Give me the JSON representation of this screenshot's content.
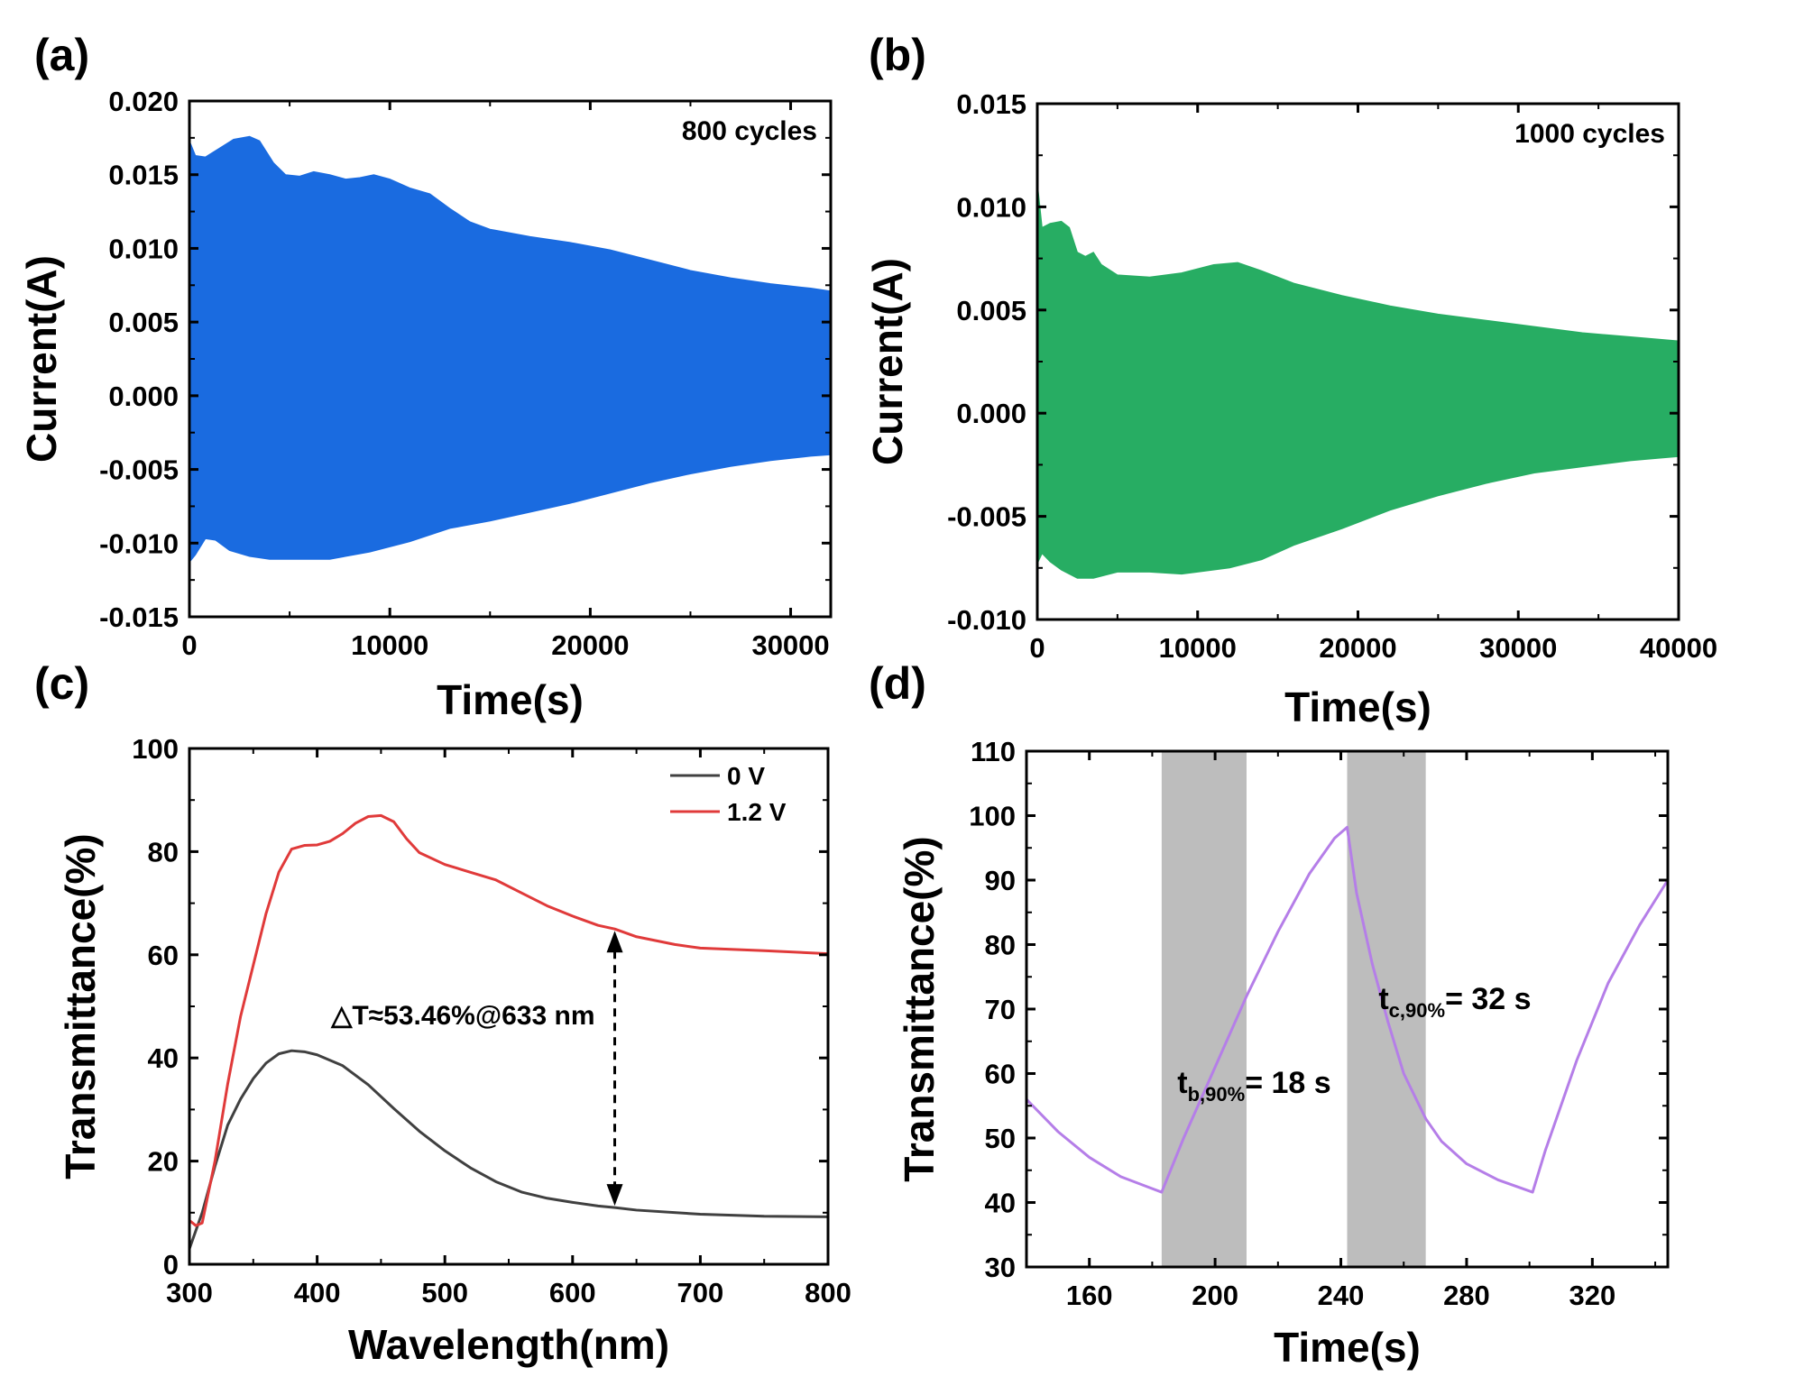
{
  "chart_data": [
    {
      "panel": "(a)",
      "type": "area",
      "xlabel": "Time(s)",
      "ylabel": "Current(A)",
      "xlim": [
        0,
        32000
      ],
      "ylim": [
        -0.015,
        0.02
      ],
      "xticks": [
        0,
        10000,
        20000,
        30000
      ],
      "xtick_labels": [
        "0",
        "10000",
        "20000",
        "30000"
      ],
      "yticks": [
        -0.015,
        -0.01,
        -0.005,
        0.0,
        0.005,
        0.01,
        0.015,
        0.02
      ],
      "ytick_labels": [
        "-0.015",
        "-0.010",
        "-0.005",
        "0.000",
        "0.005",
        "0.010",
        "0.015",
        "0.020"
      ],
      "annotation": "800 cycles",
      "color": "#1a6be0",
      "upper_envelope": [
        [
          0,
          0.0173
        ],
        [
          300,
          0.0163
        ],
        [
          800,
          0.0162
        ],
        [
          1500,
          0.0168
        ],
        [
          2200,
          0.0174
        ],
        [
          3000,
          0.0176
        ],
        [
          3500,
          0.0173
        ],
        [
          4200,
          0.0158
        ],
        [
          4800,
          0.015
        ],
        [
          5500,
          0.0149
        ],
        [
          6200,
          0.0152
        ],
        [
          7000,
          0.015
        ],
        [
          7800,
          0.0147
        ],
        [
          8500,
          0.0148
        ],
        [
          9200,
          0.015
        ],
        [
          10000,
          0.0147
        ],
        [
          11000,
          0.0141
        ],
        [
          12000,
          0.0137
        ],
        [
          13000,
          0.0127
        ],
        [
          14000,
          0.0118
        ],
        [
          15000,
          0.0113
        ],
        [
          17000,
          0.0108
        ],
        [
          19000,
          0.0104
        ],
        [
          21000,
          0.0099
        ],
        [
          23000,
          0.0092
        ],
        [
          25000,
          0.0085
        ],
        [
          27000,
          0.008
        ],
        [
          29000,
          0.0076
        ],
        [
          31000,
          0.0073
        ],
        [
          32000,
          0.0071
        ]
      ],
      "lower_envelope": [
        [
          0,
          -0.0113
        ],
        [
          300,
          -0.0108
        ],
        [
          800,
          -0.0097
        ],
        [
          1300,
          -0.0098
        ],
        [
          2000,
          -0.0105
        ],
        [
          3000,
          -0.0109
        ],
        [
          4000,
          -0.0111
        ],
        [
          5500,
          -0.0111
        ],
        [
          7000,
          -0.0111
        ],
        [
          9000,
          -0.0106
        ],
        [
          11000,
          -0.0099
        ],
        [
          13000,
          -0.009
        ],
        [
          15000,
          -0.0085
        ],
        [
          17000,
          -0.0079
        ],
        [
          19000,
          -0.0073
        ],
        [
          21000,
          -0.0066
        ],
        [
          23000,
          -0.0059
        ],
        [
          25000,
          -0.0053
        ],
        [
          27000,
          -0.0048
        ],
        [
          29000,
          -0.0044
        ],
        [
          31000,
          -0.0041
        ],
        [
          32000,
          -0.004
        ]
      ]
    },
    {
      "panel": "(b)",
      "type": "area",
      "xlabel": "Time(s)",
      "ylabel": "Current(A)",
      "xlim": [
        0,
        40000
      ],
      "ylim": [
        -0.01,
        0.015
      ],
      "xticks": [
        0,
        10000,
        20000,
        30000,
        40000
      ],
      "xtick_labels": [
        "0",
        "10000",
        "20000",
        "30000",
        "40000"
      ],
      "yticks": [
        -0.01,
        -0.005,
        0.0,
        0.005,
        0.01,
        0.015
      ],
      "ytick_labels": [
        "-0.010",
        "-0.005",
        "0.000",
        "0.005",
        "0.010",
        "0.015"
      ],
      "annotation": "1000 cycles",
      "color": "#27ad63",
      "upper_envelope": [
        [
          0,
          0.0112
        ],
        [
          300,
          0.009
        ],
        [
          800,
          0.0092
        ],
        [
          1500,
          0.0093
        ],
        [
          2000,
          0.009
        ],
        [
          2500,
          0.0078
        ],
        [
          3000,
          0.0076
        ],
        [
          3500,
          0.0078
        ],
        [
          4000,
          0.0072
        ],
        [
          5000,
          0.0067
        ],
        [
          7000,
          0.0066
        ],
        [
          9000,
          0.0068
        ],
        [
          11000,
          0.0072
        ],
        [
          12500,
          0.0073
        ],
        [
          14000,
          0.0069
        ],
        [
          16000,
          0.0063
        ],
        [
          19000,
          0.0057
        ],
        [
          22000,
          0.0052
        ],
        [
          25000,
          0.0048
        ],
        [
          28000,
          0.0045
        ],
        [
          31000,
          0.0042
        ],
        [
          34000,
          0.0039
        ],
        [
          37000,
          0.0037
        ],
        [
          40000,
          0.0035
        ]
      ],
      "lower_envelope": [
        [
          0,
          -0.0073
        ],
        [
          300,
          -0.0068
        ],
        [
          800,
          -0.0072
        ],
        [
          1500,
          -0.0076
        ],
        [
          2500,
          -0.008
        ],
        [
          3500,
          -0.008
        ],
        [
          5000,
          -0.0077
        ],
        [
          7000,
          -0.0077
        ],
        [
          9000,
          -0.0078
        ],
        [
          12000,
          -0.0075
        ],
        [
          14000,
          -0.0071
        ],
        [
          16000,
          -0.0064
        ],
        [
          19000,
          -0.0056
        ],
        [
          22000,
          -0.0047
        ],
        [
          25000,
          -0.004
        ],
        [
          28000,
          -0.0034
        ],
        [
          31000,
          -0.0029
        ],
        [
          34000,
          -0.0026
        ],
        [
          37000,
          -0.0023
        ],
        [
          40000,
          -0.0021
        ]
      ]
    },
    {
      "panel": "(c)",
      "type": "line",
      "xlabel": "Wavelength(nm)",
      "ylabel": "Transmittance(%)",
      "xlim": [
        300,
        800
      ],
      "ylim": [
        0,
        100
      ],
      "xticks": [
        300,
        400,
        500,
        600,
        700,
        800
      ],
      "xtick_labels": [
        "300",
        "400",
        "500",
        "600",
        "700",
        "800"
      ],
      "yticks": [
        0,
        20,
        40,
        60,
        80,
        100
      ],
      "ytick_labels": [
        "0",
        "20",
        "40",
        "60",
        "80",
        "100"
      ],
      "series": [
        {
          "name": "0 V",
          "color": "#404040",
          "points": [
            [
              300,
              3
            ],
            [
              310,
              10
            ],
            [
              320,
              19
            ],
            [
              330,
              27
            ],
            [
              340,
              32
            ],
            [
              350,
              36
            ],
            [
              360,
              39
            ],
            [
              370,
              40.8
            ],
            [
              380,
              41.4
            ],
            [
              390,
              41.2
            ],
            [
              400,
              40.6
            ],
            [
              420,
              38.5
            ],
            [
              440,
              34.8
            ],
            [
              460,
              30.2
            ],
            [
              480,
              25.8
            ],
            [
              500,
              22.0
            ],
            [
              520,
              18.7
            ],
            [
              540,
              16.0
            ],
            [
              560,
              14.0
            ],
            [
              580,
              12.8
            ],
            [
              600,
              12.0
            ],
            [
              620,
              11.3
            ],
            [
              633,
              11.0
            ],
            [
              650,
              10.5
            ],
            [
              700,
              9.7
            ],
            [
              750,
              9.3
            ],
            [
              800,
              9.2
            ]
          ]
        },
        {
          "name": "1.2 V",
          "color": "#e03a3a",
          "points": [
            [
              300,
              8.5
            ],
            [
              305,
              7.5
            ],
            [
              310,
              8
            ],
            [
              320,
              20
            ],
            [
              330,
              35
            ],
            [
              340,
              48
            ],
            [
              350,
              58
            ],
            [
              360,
              68
            ],
            [
              370,
              76
            ],
            [
              380,
              80.5
            ],
            [
              390,
              81.2
            ],
            [
              400,
              81.3
            ],
            [
              410,
              82.0
            ],
            [
              420,
              83.5
            ],
            [
              430,
              85.5
            ],
            [
              440,
              86.8
            ],
            [
              450,
              87.0
            ],
            [
              460,
              85.8
            ],
            [
              470,
              82.5
            ],
            [
              480,
              79.8
            ],
            [
              500,
              77.5
            ],
            [
              520,
              76.0
            ],
            [
              540,
              74.5
            ],
            [
              560,
              72.0
            ],
            [
              580,
              69.5
            ],
            [
              600,
              67.5
            ],
            [
              620,
              65.7
            ],
            [
              633,
              65.0
            ],
            [
              650,
              63.5
            ],
            [
              680,
              62.0
            ],
            [
              700,
              61.3
            ],
            [
              750,
              60.8
            ],
            [
              800,
              60.2
            ]
          ]
        }
      ],
      "legend": [
        "0 V",
        "1.2 V"
      ],
      "annotation": "△T≈53.46%@633 nm",
      "arrow": {
        "x": 633,
        "from": 11.0,
        "to": 65.0
      }
    },
    {
      "panel": "(d)",
      "type": "line",
      "xlabel": "Time(s)",
      "ylabel": "Transmittance(%)",
      "xlim": [
        140,
        344
      ],
      "ylim": [
        30,
        110
      ],
      "xticks": [
        160,
        200,
        240,
        280,
        320
      ],
      "xtick_labels": [
        "160",
        "200",
        "240",
        "280",
        "320"
      ],
      "yticks": [
        30,
        40,
        50,
        60,
        70,
        80,
        90,
        100,
        110
      ],
      "ytick_labels": [
        "30",
        "40",
        "50",
        "60",
        "70",
        "80",
        "90",
        "100",
        "110"
      ],
      "shaded_regions": [
        [
          183,
          210
        ],
        [
          242,
          267
        ]
      ],
      "series": [
        {
          "name": "transmittance",
          "color": "#b57ee8",
          "points": [
            [
              140,
              56
            ],
            [
              150,
              51
            ],
            [
              160,
              47
            ],
            [
              170,
              44
            ],
            [
              183,
              41.6
            ],
            [
              185,
              44
            ],
            [
              190,
              50
            ],
            [
              200,
              61
            ],
            [
              210,
              72
            ],
            [
              220,
              82
            ],
            [
              230,
              91
            ],
            [
              238,
              96.5
            ],
            [
              242,
              98.2
            ],
            [
              245,
              88
            ],
            [
              250,
              77
            ],
            [
              255,
              68
            ],
            [
              260,
              60
            ],
            [
              267,
              53
            ],
            [
              272,
              49.5
            ],
            [
              280,
              46
            ],
            [
              290,
              43.5
            ],
            [
              301,
              41.6
            ],
            [
              305,
              48
            ],
            [
              315,
              62
            ],
            [
              325,
              74
            ],
            [
              335,
              83
            ],
            [
              344,
              90
            ]
          ]
        }
      ],
      "annotations": [
        {
          "main": "t",
          "sub": "b,90%",
          "rest": "= 18 s"
        },
        {
          "main": "t",
          "sub": "c,90%",
          "rest": "= 32 s"
        }
      ]
    }
  ]
}
